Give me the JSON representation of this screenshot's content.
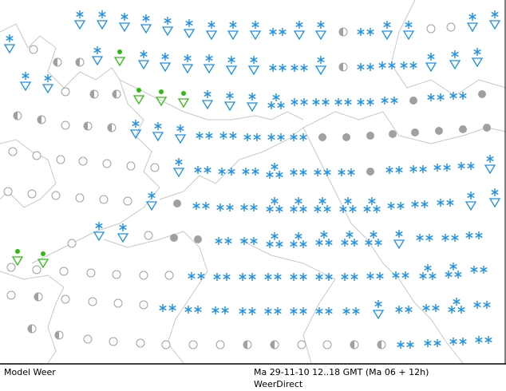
{
  "footer": {
    "product": "Model Weer",
    "valid_time": "Ma 29-11-10 12..18 GMT (Ma 06 + 12h)",
    "source": "WeerDirect"
  }
}
